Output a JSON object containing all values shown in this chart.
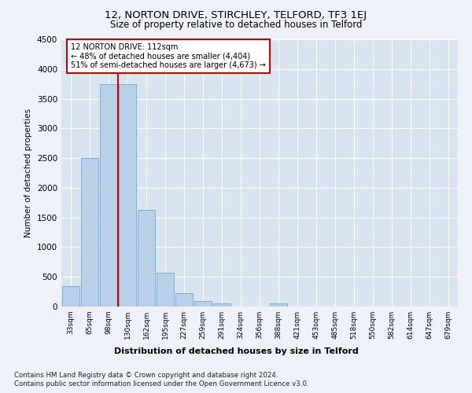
{
  "title_line1": "12, NORTON DRIVE, STIRCHLEY, TELFORD, TF3 1EJ",
  "title_line2": "Size of property relative to detached houses in Telford",
  "xlabel": "Distribution of detached houses by size in Telford",
  "ylabel": "Number of detached properties",
  "categories": [
    "33sqm",
    "65sqm",
    "98sqm",
    "130sqm",
    "162sqm",
    "195sqm",
    "227sqm",
    "259sqm",
    "291sqm",
    "324sqm",
    "356sqm",
    "388sqm",
    "421sqm",
    "453sqm",
    "485sqm",
    "518sqm",
    "550sqm",
    "582sqm",
    "614sqm",
    "647sqm",
    "679sqm"
  ],
  "values": [
    350,
    2500,
    3750,
    3750,
    1625,
    575,
    225,
    90,
    50,
    0,
    0,
    50,
    0,
    0,
    0,
    0,
    0,
    0,
    0,
    0,
    0
  ],
  "bar_color": "#b8d0e8",
  "bar_edge_color": "#6aaad4",
  "vline_x_index": 2.5,
  "vline_color": "#cc0000",
  "annotation_text_line1": "12 NORTON DRIVE: 112sqm",
  "annotation_text_line2": "← 48% of detached houses are smaller (4,404)",
  "annotation_text_line3": "51% of semi-detached houses are larger (4,673) →",
  "annotation_box_color": "#ffffff",
  "annotation_box_edge": "#cc0000",
  "ylim": [
    0,
    4500
  ],
  "yticks": [
    0,
    500,
    1000,
    1500,
    2000,
    2500,
    3000,
    3500,
    4000,
    4500
  ],
  "footer_line1": "Contains HM Land Registry data © Crown copyright and database right 2024.",
  "footer_line2": "Contains public sector information licensed under the Open Government Licence v3.0.",
  "background_color": "#eef2f8",
  "plot_bg_color": "#d8e4f0"
}
